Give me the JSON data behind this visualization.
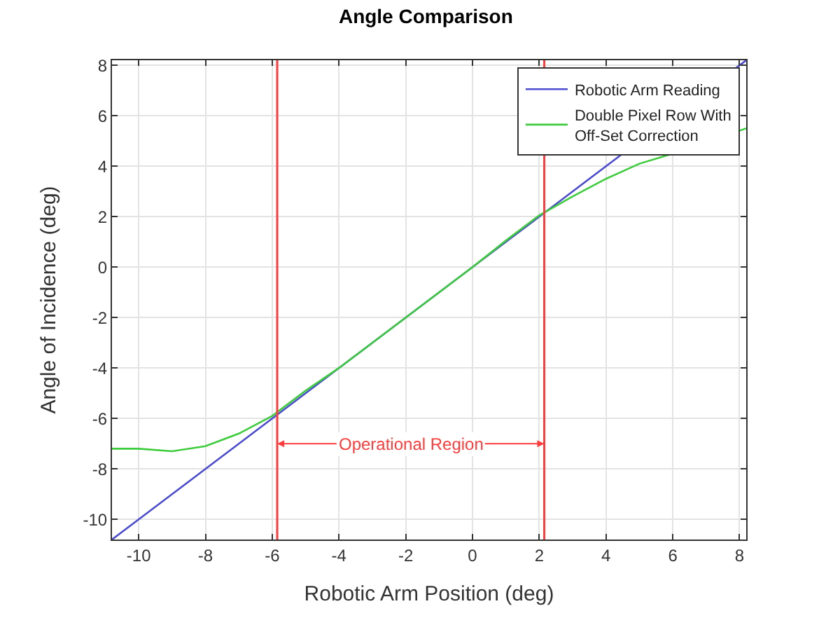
{
  "chart_data": {
    "type": "line",
    "title": "Angle Comparison",
    "xlabel": "Robotic Arm Position (deg)",
    "ylabel": "Angle of Incidence (deg)",
    "x": [
      -10.8,
      -10,
      -9,
      -8,
      -7,
      -6,
      -5,
      -4,
      -3,
      -2,
      -1,
      0,
      1,
      2,
      3,
      4,
      5,
      6,
      7,
      8.2
    ],
    "series": [
      {
        "name": "Robotic Arm Reading",
        "color": "#4b4bd2",
        "values": [
          -10.8,
          -10,
          -9,
          -8,
          -7,
          -6,
          -5,
          -4,
          -3,
          -2,
          -1,
          0,
          1,
          2,
          3,
          4,
          null,
          null,
          null,
          8.2
        ]
      },
      {
        "name": "Double Pixel Row With Off-Set Correction",
        "color": "#3ccc3c",
        "values": [
          -7.2,
          -7.2,
          -7.3,
          -7.1,
          -6.6,
          -5.9,
          -4.9,
          -4,
          -3,
          -2,
          -1,
          0,
          1.05,
          2.05,
          2.8,
          3.5,
          4.1,
          4.5,
          null,
          5.5
        ]
      }
    ],
    "xlim": [
      -10.8,
      8.2
    ],
    "ylim": [
      -10.8,
      8.2
    ],
    "xticks": [
      -10,
      -8,
      -6,
      -4,
      -2,
      0,
      2,
      4,
      6,
      8
    ],
    "yticks": [
      -10,
      -8,
      -6,
      -4,
      -2,
      0,
      2,
      4,
      6,
      8
    ],
    "ref_lines": [
      {
        "axis": "x",
        "value": -5.85,
        "color": "#ff3c3c"
      },
      {
        "axis": "x",
        "value": 2.15,
        "color": "#ff3c3c"
      }
    ],
    "annotations": [
      {
        "text": "Operational Region",
        "x": -5.85,
        "y": -7
      }
    ],
    "grid": true,
    "legend": "top right",
    "marker": "none",
    "line_style": "solid"
  }
}
